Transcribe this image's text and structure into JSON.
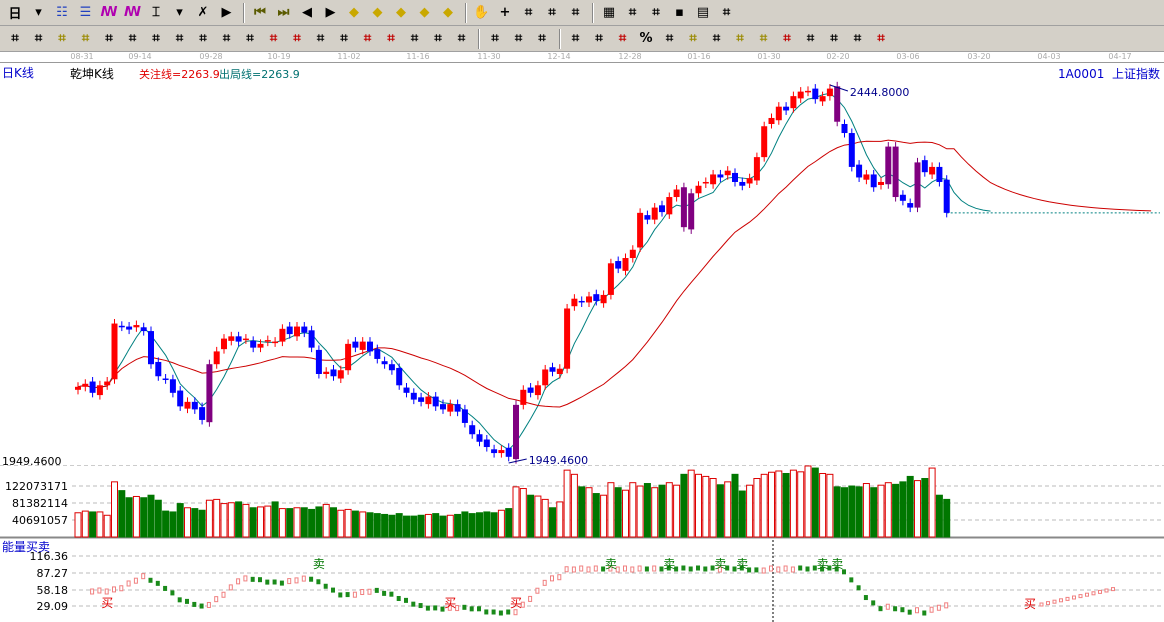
{
  "toolbar1": {
    "period": "日",
    "icons": [
      "arrow-down",
      "overlay-icon",
      "list-icon",
      "chart3-icon",
      "chart9-icon",
      "candle-icon",
      "arrow-down",
      "flag-icon",
      "pennant-icon",
      "first-icon",
      "last-icon",
      "left-icon",
      "right-icon",
      "diamond-left-icon",
      "diamond-right-icon",
      "diamond-expand-icon",
      "diamond-shrink-icon",
      "diamond-move-icon",
      "hand-icon",
      "crosshair-icon",
      "line-tool-icon",
      "gift-icon",
      "globe-icon",
      "calendar-icon",
      "calc-icon",
      "report-icon",
      "save-icon",
      "print-icon",
      "image-icon"
    ]
  },
  "toolbar2": {
    "icons": [
      "pen-icon",
      "lines-icon",
      "gold-icon",
      "gold2-icon",
      "fib-icon",
      "spiral-icon",
      "pen2-icon",
      "circle-icon",
      "lines2-icon",
      "n2-icon",
      "angle-icon",
      "target-icon",
      "star-icon",
      "box-icon",
      "tick-icon",
      "shen-icon",
      "ying-icon",
      "grid-icon",
      "fan-icon",
      "diag-icon",
      "angle2-icon",
      "table-icon",
      "grid2-icon",
      "parallel-icon",
      "bars-icon",
      "pct-icon",
      "percent-icon",
      "yuan-icon",
      "gold3-icon",
      "flag2-icon",
      "coin-icon",
      "jin-icon",
      "fei-icon",
      "arrow-icon",
      "arrow2-icon",
      "lin-icon",
      "zhe-icon"
    ]
  },
  "date_axis": [
    "08-31",
    "09-14",
    "09-28",
    "10-19",
    "11-02",
    "11-16",
    "11-30",
    "12-14",
    "12-28",
    "01-16",
    "01-30",
    "02-20",
    "03-06",
    "03-20",
    "04-03",
    "04-17"
  ],
  "header": {
    "period_label": "日K线",
    "indicator_name": "乾坤K线",
    "focus_line": "关注线=2263.9",
    "exit_line": "出局线=2263.9",
    "code": "1A0001",
    "name": "上证指数"
  },
  "chart_data": {
    "type": "candlestick",
    "high_label": "2444.8000",
    "low_label": "1949.4600",
    "ylim": [
      1949.46,
      2444.8
    ],
    "closes": [
      2048,
      2052,
      2040,
      2050,
      2055,
      2132,
      2128,
      2124,
      2130,
      2122,
      2078,
      2062,
      2058,
      2040,
      2022,
      2028,
      2018,
      2004,
      2078,
      2095,
      2112,
      2115,
      2108,
      2112,
      2100,
      2105,
      2110,
      2108,
      2125,
      2118,
      2128,
      2120,
      2100,
      2065,
      2068,
      2062,
      2070,
      2105,
      2100,
      2108,
      2095,
      2085,
      2078,
      2070,
      2050,
      2040,
      2031,
      2028,
      2035,
      2022,
      2018,
      2025,
      2015,
      2000,
      1985,
      1975,
      1968,
      1960,
      1964,
      1955,
      2024,
      2044,
      2040,
      2050,
      2071,
      2068,
      2072,
      2152,
      2165,
      2160,
      2168,
      2162,
      2170,
      2212,
      2205,
      2219,
      2230,
      2279,
      2270,
      2286,
      2280,
      2300,
      2310,
      2260,
      2305,
      2315,
      2320,
      2330,
      2326,
      2335,
      2320,
      2315,
      2325,
      2353,
      2394,
      2405,
      2420,
      2415,
      2434,
      2440,
      2441,
      2430,
      2434,
      2444,
      2400,
      2385,
      2340,
      2326,
      2330,
      2313,
      2320,
      2367,
      2300,
      2295,
      2286,
      2346,
      2333,
      2340,
      2320,
      2279
    ],
    "volume": {
      "ticks": [
        "122073171",
        "81382114",
        "40691057"
      ],
      "values_m": [
        58,
        62,
        60,
        60,
        52,
        132,
        111,
        94,
        97,
        94,
        100,
        88,
        62,
        60,
        80,
        70,
        68,
        64,
        88,
        90,
        80,
        82,
        84,
        78,
        70,
        72,
        74,
        84,
        68,
        68,
        70,
        70,
        66,
        72,
        78,
        70,
        64,
        66,
        62,
        60,
        58,
        56,
        54,
        52,
        56,
        50,
        50,
        52,
        54,
        56,
        50,
        52,
        54,
        60,
        56,
        58,
        60,
        58,
        64,
        68,
        120,
        116,
        100,
        98,
        90,
        70,
        84,
        160,
        150,
        120,
        118,
        104,
        100,
        130,
        118,
        112,
        130,
        122,
        128,
        118,
        124,
        130,
        124,
        150,
        160,
        150,
        145,
        140,
        125,
        132,
        150,
        110,
        124,
        140,
        150,
        155,
        158,
        152,
        160,
        156,
        170,
        165,
        152,
        150,
        120,
        118,
        122,
        120,
        128,
        118,
        124,
        130,
        126,
        132,
        145,
        135,
        140,
        165,
        100,
        90
      ]
    },
    "indicator": {
      "title": "能量买卖",
      "ticks": [
        "116.36",
        "87.27",
        "58.18",
        "29.09"
      ],
      "signals": [
        {
          "i": 4,
          "t": "买"
        },
        {
          "i": 33,
          "t": "卖"
        },
        {
          "i": 51,
          "t": "买"
        },
        {
          "i": 60,
          "t": "买"
        },
        {
          "i": 73,
          "t": "卖"
        },
        {
          "i": 81,
          "t": "卖"
        },
        {
          "i": 88,
          "t": "卖"
        },
        {
          "i": 91,
          "t": "卖"
        },
        {
          "i": 102,
          "t": "卖"
        },
        {
          "i": 104,
          "t": "卖"
        }
      ],
      "future_signal": "买"
    }
  },
  "colors": {
    "up": "#ff0000",
    "down": "#0000ff",
    "turn": "#800080",
    "ma_short": "#008080",
    "ma_long": "#cc0000",
    "vol_down": "#007700"
  }
}
